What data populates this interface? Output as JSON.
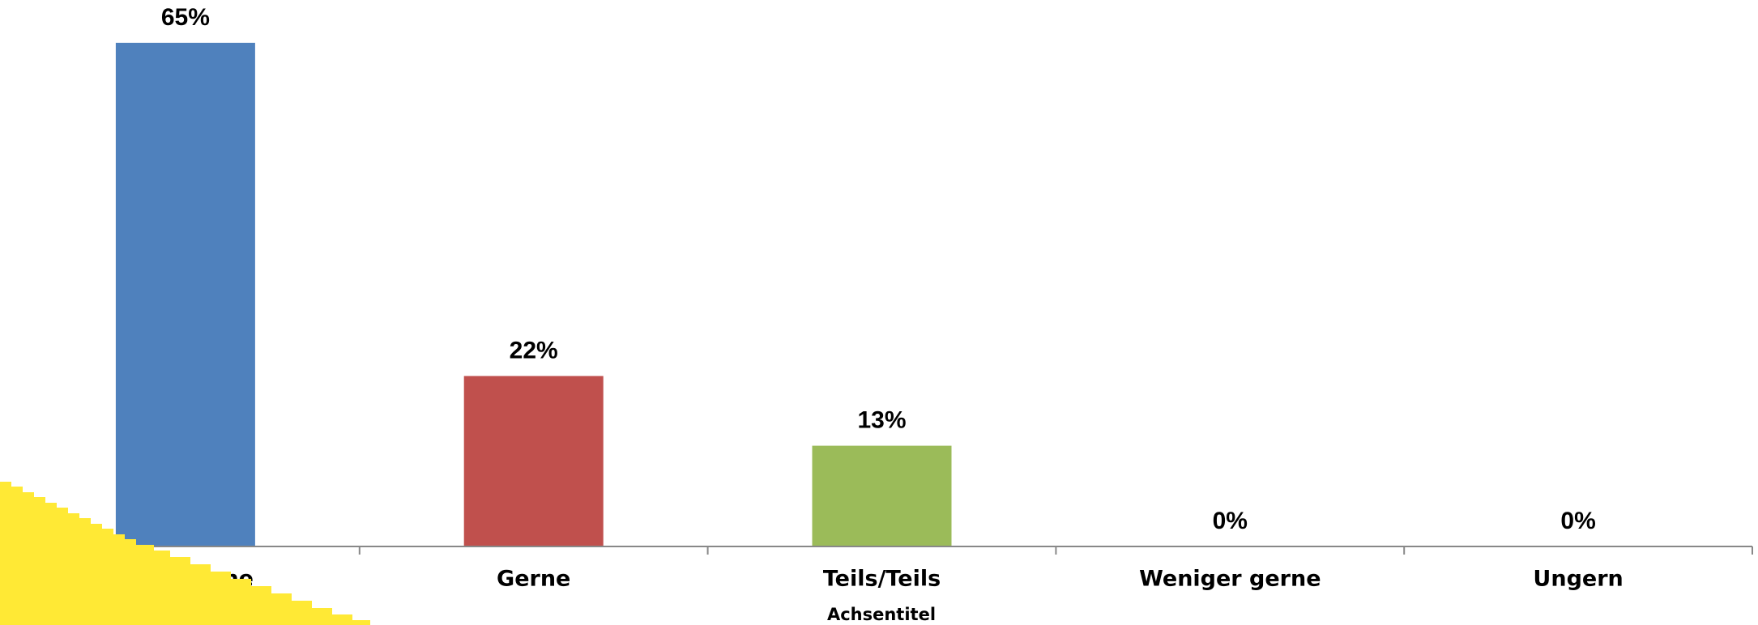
{
  "chart_data": {
    "type": "bar",
    "x_label": "Achsentitel",
    "categories": [
      "Sehr gerne",
      "Gerne",
      "Teils/Teils",
      "Weniger gerne",
      "Ungern"
    ],
    "values": [
      65,
      22,
      13,
      0,
      0
    ],
    "value_labels": [
      "65%",
      "22%",
      "13%",
      "0%",
      "0%"
    ],
    "colors": [
      "#4f81bd",
      "#c0504d",
      "#9bbb59",
      "#8064a2",
      "#4bacc6"
    ],
    "ylim": [
      0,
      70
    ]
  }
}
